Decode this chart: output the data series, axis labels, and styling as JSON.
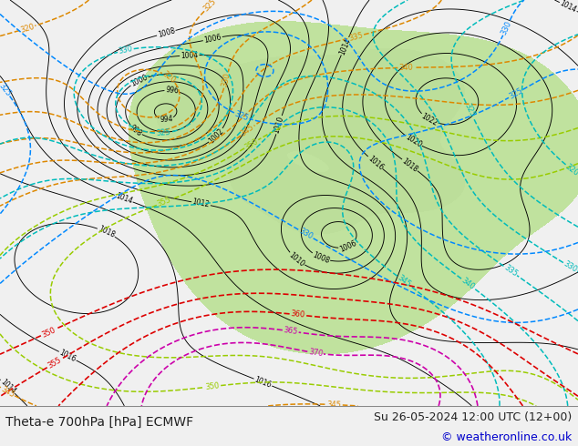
{
  "title_left": "Theta-e 700hPa [hPa] ECMWF",
  "title_right": "Su 26-05-2024 12:00 UTC (12+00)",
  "copyright": "© weatheronline.co.uk",
  "bg_color": "#f0f0f0",
  "map_bg_color": "#e8e8e8",
  "green_fill_color": "#b8e090",
  "bottom_bar_color": "#e8e8e8",
  "title_color": "#222222",
  "copyright_color": "#0000cc",
  "figsize": [
    6.34,
    4.9
  ],
  "dpi": 100
}
